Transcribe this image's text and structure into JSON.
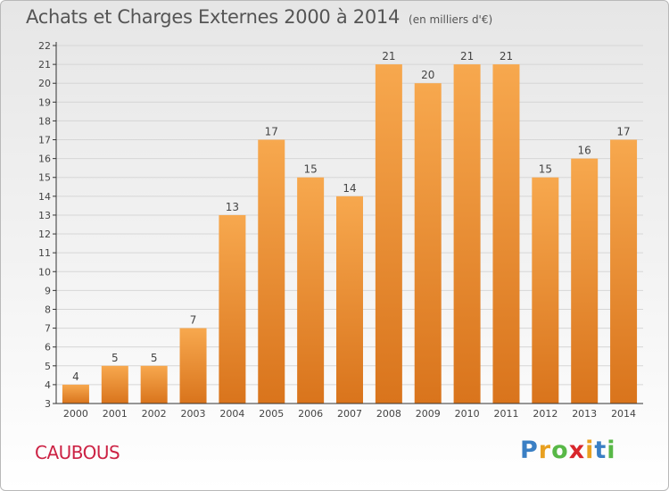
{
  "header": {
    "title": "Achats et Charges Externes 2000 à 2014",
    "subtitle": "(en milliers d'€)"
  },
  "footer": {
    "commune": "CAUBOUS",
    "logo_letters": [
      "P",
      "r",
      "o",
      "x",
      "i",
      "t",
      "i"
    ],
    "logo_colors": [
      "#3a7fc4",
      "#e8a020",
      "#58b847",
      "#d8262c",
      "#e8a020",
      "#3a7fc4",
      "#58b847"
    ]
  },
  "colors": {
    "bar_top": "#f7a84e",
    "bar_bottom": "#d9741c",
    "grid": "#d6d6d6",
    "axis": "#333333",
    "label": "#444444"
  },
  "chart_data": {
    "type": "bar",
    "categories": [
      "2000",
      "2001",
      "2002",
      "2003",
      "2004",
      "2005",
      "2006",
      "2007",
      "2008",
      "2009",
      "2010",
      "2011",
      "2012",
      "2013",
      "2014"
    ],
    "values": [
      4,
      5,
      5,
      7,
      13,
      17,
      15,
      14,
      21,
      20,
      21,
      21,
      15,
      16,
      17
    ],
    "title": "Achats et Charges Externes 2000 à 2014",
    "xlabel": "",
    "ylabel": "",
    "ylim": [
      3,
      22
    ],
    "yticks": [
      3,
      4,
      5,
      6,
      7,
      8,
      9,
      10,
      11,
      12,
      13,
      14,
      15,
      16,
      17,
      18,
      19,
      20,
      21,
      22
    ],
    "grid": true,
    "data_labels": true
  }
}
